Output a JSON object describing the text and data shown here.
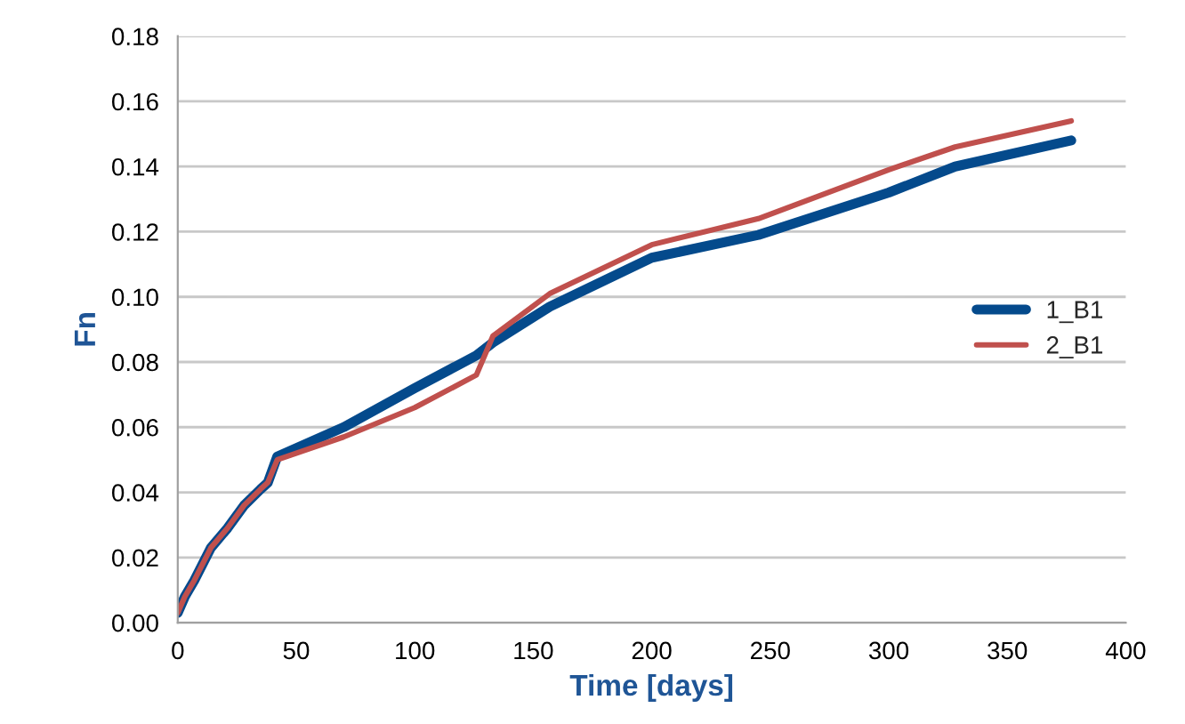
{
  "chart_data": {
    "type": "line",
    "xlabel": "Time [days]",
    "ylabel": "Fn",
    "x": [
      0,
      3,
      7,
      14,
      21,
      28,
      35,
      38,
      42,
      70,
      100,
      126,
      133,
      157,
      200,
      245,
      300,
      328,
      377
    ],
    "series": [
      {
        "name": "1_B1",
        "color": "#044a8c",
        "values": [
          0.003,
          0.008,
          0.013,
          0.023,
          0.029,
          0.036,
          0.041,
          0.043,
          0.051,
          0.06,
          0.072,
          0.082,
          0.086,
          0.097,
          0.112,
          0.119,
          0.132,
          0.14,
          0.148
        ]
      },
      {
        "name": "2_B1",
        "color": "#c0504d",
        "values": [
          0.003,
          0.008,
          0.013,
          0.023,
          0.029,
          0.036,
          0.041,
          0.043,
          0.05,
          0.057,
          0.066,
          0.076,
          0.088,
          0.101,
          0.116,
          0.124,
          0.139,
          0.146,
          0.154
        ]
      }
    ],
    "xlim": [
      0,
      400
    ],
    "xticks": [
      0,
      50,
      100,
      150,
      200,
      250,
      300,
      350,
      400
    ],
    "ylim": [
      0,
      0.18
    ],
    "yticks": [
      {
        "value": 0,
        "label": "0.00"
      },
      {
        "value": 0.02,
        "label": "0.02"
      },
      {
        "value": 0.04,
        "label": "0.04"
      },
      {
        "value": 0.06,
        "label": "0.06"
      },
      {
        "value": 0.08,
        "label": "0.08"
      },
      {
        "value": 0.1,
        "label": "0.10"
      },
      {
        "value": 0.12,
        "label": "0.12"
      },
      {
        "value": 0.14,
        "label": "0.14"
      },
      {
        "value": 0.16,
        "label": "0.16"
      },
      {
        "value": 0.18,
        "label": "0.18"
      }
    ],
    "grid": "y",
    "legend": "right",
    "marker": "none",
    "line_style": "solid"
  }
}
